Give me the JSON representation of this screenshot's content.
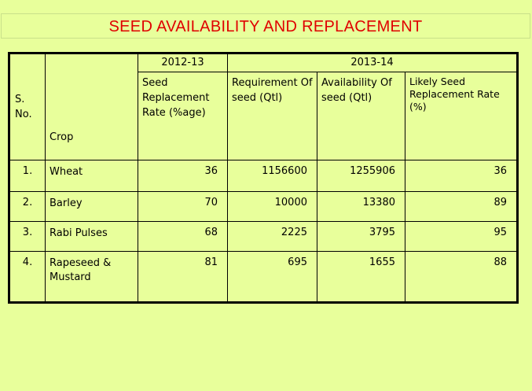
{
  "title": "SEED AVAILABILITY AND REPLACEMENT",
  "table": {
    "year_headers": [
      "2012-13",
      "2013-14"
    ],
    "columns": {
      "sno": "S. No.",
      "crop": "Crop",
      "srr": "Seed Replacement Rate (%age)",
      "requirement": "Requirement Of seed (Qtl)",
      "availability": "Availability Of seed (Qtl)",
      "likely": "Likely Seed Replacement Rate (%)"
    },
    "rows": [
      {
        "sno": "1.",
        "crop": "Wheat",
        "srr": "36",
        "requirement": "1156600",
        "availability": "1255906",
        "likely": "36"
      },
      {
        "sno": "2.",
        "crop": "Barley",
        "srr": "70",
        "requirement": "10000",
        "availability": "13380",
        "likely": "89"
      },
      {
        "sno": "3.",
        "crop": "Rabi Pulses",
        "srr": "68",
        "requirement": "2225",
        "availability": "3795",
        "likely": "95"
      },
      {
        "sno": "4.",
        "crop": "Rapeseed & Mustard",
        "srr": "81",
        "requirement": "695",
        "availability": "1655",
        "likely": "88"
      }
    ]
  }
}
